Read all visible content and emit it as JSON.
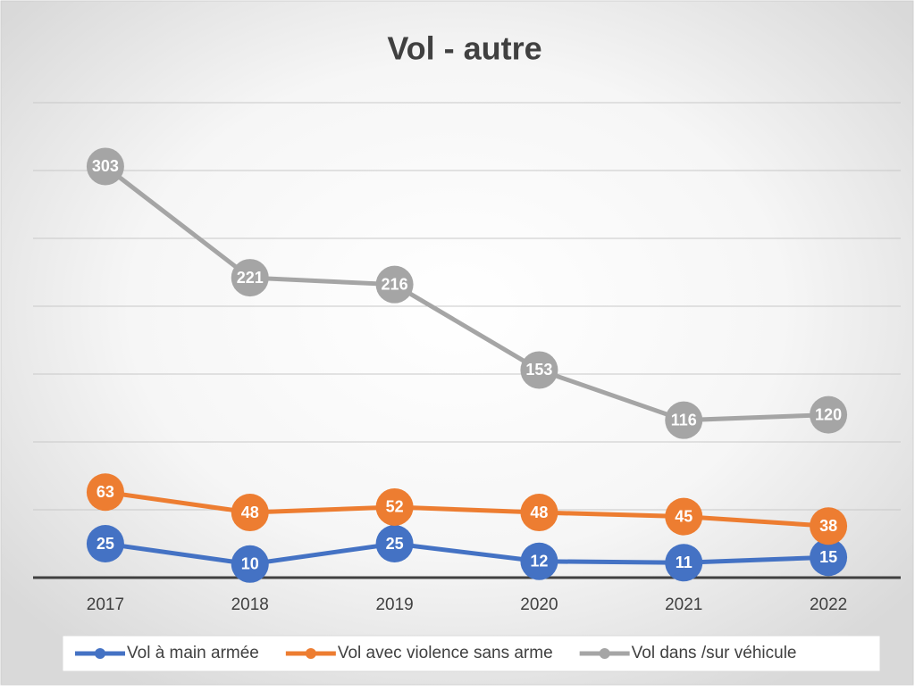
{
  "chart_data": {
    "type": "line",
    "title": "Vol - autre",
    "categories": [
      "2017",
      "2018",
      "2019",
      "2020",
      "2021",
      "2022"
    ],
    "series": [
      {
        "name": "Vol à main armée",
        "color": "#4472c4",
        "values": [
          25,
          10,
          25,
          12,
          11,
          15
        ]
      },
      {
        "name": "Vol avec violence sans arme",
        "color": "#ed7d31",
        "values": [
          63,
          48,
          52,
          48,
          45,
          38
        ]
      },
      {
        "name": "Vol dans /sur véhicule",
        "color": "#a5a5a5",
        "values": [
          303,
          221,
          216,
          153,
          116,
          120
        ]
      }
    ],
    "ylim": [
      0,
      350
    ],
    "yticks": [
      0,
      50,
      100,
      150,
      200,
      250,
      300,
      350
    ],
    "grid": true,
    "legend": "bottom"
  }
}
